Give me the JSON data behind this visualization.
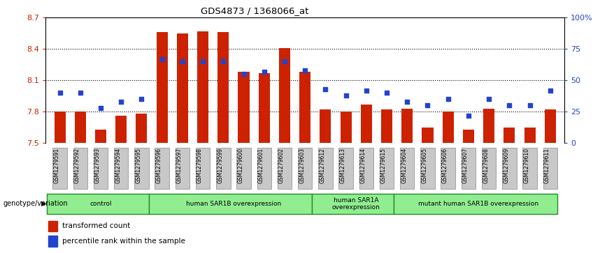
{
  "title": "GDS4873 / 1368066_at",
  "samples": [
    "GSM1279591",
    "GSM1279592",
    "GSM1279593",
    "GSM1279594",
    "GSM1279595",
    "GSM1279596",
    "GSM1279597",
    "GSM1279598",
    "GSM1279599",
    "GSM1279600",
    "GSM1279601",
    "GSM1279602",
    "GSM1279603",
    "GSM1279612",
    "GSM1279613",
    "GSM1279614",
    "GSM1279615",
    "GSM1279604",
    "GSM1279605",
    "GSM1279606",
    "GSM1279607",
    "GSM1279608",
    "GSM1279609",
    "GSM1279610",
    "GSM1279611"
  ],
  "bar_values": [
    7.8,
    7.8,
    7.63,
    7.76,
    7.78,
    8.56,
    8.55,
    8.57,
    8.56,
    8.18,
    8.17,
    8.41,
    8.18,
    7.82,
    7.8,
    7.87,
    7.82,
    7.83,
    7.65,
    7.8,
    7.63,
    7.83,
    7.65,
    7.65,
    7.82
  ],
  "blue_values_pct": [
    40,
    40,
    28,
    33,
    35,
    67,
    65,
    65,
    65,
    55,
    57,
    65,
    58,
    43,
    38,
    42,
    40,
    33,
    30,
    35,
    22,
    35,
    30,
    30,
    42
  ],
  "ylim_left": [
    7.5,
    8.7
  ],
  "ylim_right": [
    0,
    100
  ],
  "yticks_left": [
    7.5,
    7.8,
    8.1,
    8.4,
    8.7
  ],
  "yticks_right": [
    0,
    25,
    50,
    75,
    100
  ],
  "ytick_labels_right": [
    "0",
    "25",
    "50",
    "75",
    "100%"
  ],
  "bar_color": "#cc2200",
  "dot_color": "#2244cc",
  "groups": [
    {
      "label": "control",
      "start": 0,
      "end": 5
    },
    {
      "label": "human SAR1B overexpression",
      "start": 5,
      "end": 13
    },
    {
      "label": "human SAR1A\noverexpression",
      "start": 13,
      "end": 17
    },
    {
      "label": "mutant human SAR1B overexpression",
      "start": 17,
      "end": 25
    }
  ],
  "group_color": "#90ee90",
  "group_border_color": "#228b22",
  "legend_items": [
    {
      "color": "#cc2200",
      "label": "transformed count"
    },
    {
      "color": "#2244cc",
      "label": "percentile rank within the sample"
    }
  ],
  "axis_label_color_left": "#cc2200",
  "axis_label_color_right": "#2244cc",
  "tick_bg_color": "#c8c8c8"
}
